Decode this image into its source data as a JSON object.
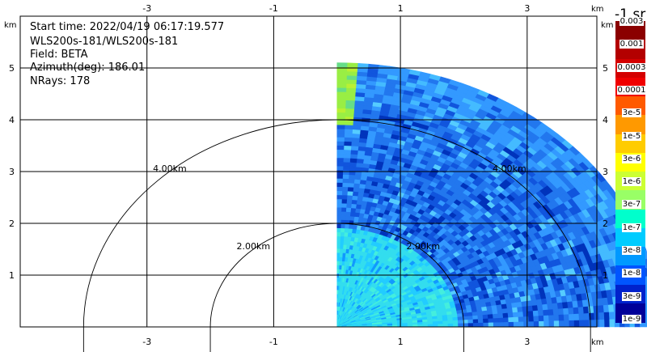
{
  "info": {
    "start_time": "Start time: 2022/04/19 06:17:19.577",
    "instrument": "WLS200s-181/WLS200s-181",
    "field": "Field: BETA",
    "azimuth": "Azimuth(deg): 186.01",
    "nrays": "NRays: 178"
  },
  "colorbar": {
    "title": "-1 sr",
    "labels": [
      "0.003",
      "0.001",
      "0.0003",
      "0.0001",
      "3e-5",
      "1e-5",
      "3e-6",
      "1e-6",
      "3e-7",
      "1e-7",
      "3e-8",
      "1e-8",
      "3e-9",
      "1e-9"
    ],
    "colors": [
      "#8b0000",
      "#b30000",
      "#d40000",
      "#f00000",
      "#ff5a00",
      "#ff9900",
      "#ffcc00",
      "#ffff00",
      "#ccff33",
      "#99ff66",
      "#00ffcc",
      "#00ccff",
      "#0099ff",
      "#0055ff",
      "#0022cc",
      "#000099"
    ]
  },
  "chart_data": {
    "type": "heatmap",
    "description_kind": "lidar RHI sector (0–90 deg elevation), range up to ~5.1 km",
    "xlim": [
      -5,
      4.1
    ],
    "ylim": [
      0,
      6
    ],
    "x_ticks": [
      -3,
      -1,
      1,
      3
    ],
    "y_ticks": [
      1,
      2,
      3,
      4,
      5
    ],
    "x_unit": "km",
    "y_unit": "km",
    "range_rings": [
      {
        "radius": 2,
        "label": "2.00km"
      },
      {
        "radius": 4,
        "label": "4.00km"
      }
    ],
    "grid": true,
    "max_range_km": 5.1,
    "colors": {
      "near_field": "#33ddee",
      "mid_field": "#2277ee",
      "far_field": "#3399ff",
      "top_edge": "#88ee55"
    }
  }
}
